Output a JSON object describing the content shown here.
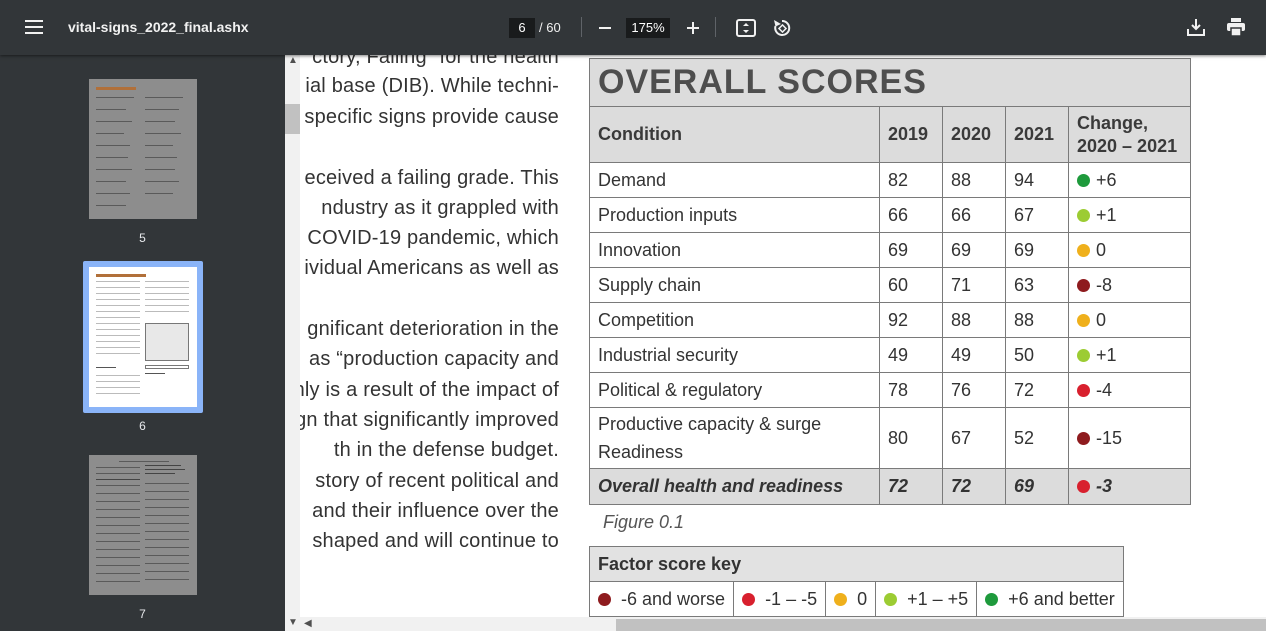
{
  "toolbar": {
    "menu_icon": "menu-icon",
    "title": "vital-signs_2022_final.ashx",
    "page_current": "6",
    "page_total": "/ 60",
    "zoom": "175%"
  },
  "sidebar": {
    "thumbnails": [
      {
        "label": "5"
      },
      {
        "label": "6"
      },
      {
        "label": "7"
      }
    ]
  },
  "document": {
    "text_lines": [
      "ctory, Failing” for the health",
      "ial base (DIB). While techni-",
      "specific signs provide cause",
      "eceived a failing grade. This",
      "ndustry as it grappled with",
      "COVID-19 pandemic, which",
      "ividual Americans as well as",
      "gnificant deterioration in the",
      "as “production capacity and",
      "nly is a result of the impact of",
      "gn that significantly improved",
      "th in the defense budget.",
      "story of recent political and",
      "and their influence over the",
      "shaped and will continue to"
    ],
    "table_title": "OVERALL SCORES",
    "headers": {
      "condition": "Condition",
      "y2019": "2019",
      "y2020": "2020",
      "y2021": "2021",
      "change_l1": "Change,",
      "change_l2": "2020 – 2021"
    },
    "rows": [
      {
        "condition": "Demand",
        "v2019": "82",
        "v2020": "88",
        "v2021": "94",
        "change": "+6",
        "color": "#1e9a3c"
      },
      {
        "condition": "Production inputs",
        "v2019": "66",
        "v2020": "66",
        "v2021": "67",
        "change": "+1",
        "color": "#9ccc33"
      },
      {
        "condition": "Innovation",
        "v2019": "69",
        "v2020": "69",
        "v2021": "69",
        "change": "0",
        "color": "#efb01c"
      },
      {
        "condition": "Supply chain",
        "v2019": "60",
        "v2020": "71",
        "v2021": "63",
        "change": "-8",
        "color": "#8e1b1e"
      },
      {
        "condition": "Competition",
        "v2019": "92",
        "v2020": "88",
        "v2021": "88",
        "change": "0",
        "color": "#efb01c"
      },
      {
        "condition": "Industrial security",
        "v2019": "49",
        "v2020": "49",
        "v2021": "50",
        "change": "+1",
        "color": "#9ccc33"
      },
      {
        "condition": "Political & regulatory",
        "v2019": "78",
        "v2020": "76",
        "v2021": "72",
        "change": "-4",
        "color": "#d8202e"
      },
      {
        "condition_l1": "Productive capacity & surge",
        "condition_l2": "Readiness",
        "v2019": "80",
        "v2020": "67",
        "v2021": "52",
        "change": "-15",
        "color": "#8e1b1e"
      }
    ],
    "overall": {
      "condition": "Overall health and readiness",
      "v2019": "72",
      "v2020": "72",
      "v2021": "69",
      "change": "-3",
      "color": "#d8202e"
    },
    "caption": "Figure 0.1",
    "key_title": "Factor score key",
    "key": [
      {
        "label": "-6 and worse",
        "color": "#8e1b1e"
      },
      {
        "label": "-1 – -5",
        "color": "#d8202e"
      },
      {
        "label": "0",
        "color": "#efb01c"
      },
      {
        "label": "+1 – +5",
        "color": "#9ccc33"
      },
      {
        "label": "+6 and better",
        "color": "#1e9a3c"
      }
    ]
  }
}
